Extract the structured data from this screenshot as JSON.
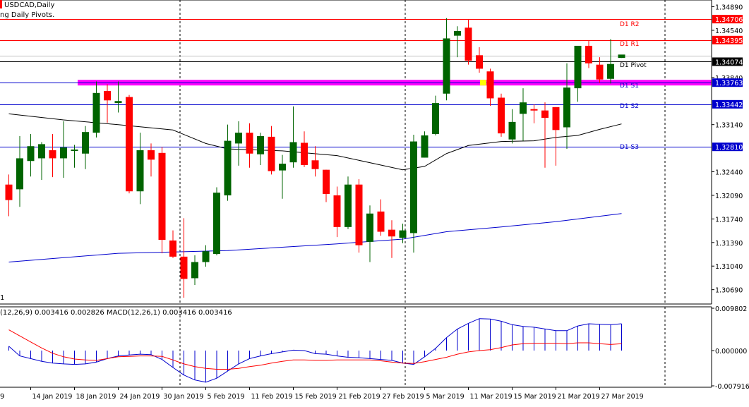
{
  "chart_info": {
    "symbol_label": "USDCAD,Daily",
    "indicator_label": "ng Daily Pivots.",
    "macd_label": "(12,26,9) 0.003416 0.002826 MACD(12,26,1) 0.003416 0.003416",
    "macd_panel_marker": "1"
  },
  "colors": {
    "bull": "#006400",
    "bear": "#ff0000",
    "pivot_red": "#ff0000",
    "pivot_black": "#000000",
    "support_blue": "#0000cd",
    "highlight_magenta": "#ff00ff",
    "ma_fast": "#000000",
    "ma_slow": "#0000cd",
    "macd_line": "#0000cd",
    "macd_signal": "#ff0000",
    "grid_dash": "#000000"
  },
  "price_axis_ticks": [
    "1.34890",
    "1.34540",
    "1.33840",
    "1.33140",
    "1.32440",
    "1.32090",
    "1.31740",
    "1.31390",
    "1.31040",
    "1.30690"
  ],
  "macd_axis_ticks": [
    "0.009802",
    "0.000000",
    "-0.007916"
  ],
  "date_labels": [
    "14 Jan 2019",
    "18 Jan 2019",
    "24 Jan 2019",
    "30 Jan 2019",
    "5 Feb 2019",
    "11 Feb 2019",
    "15 Feb 2019",
    "21 Feb 2019",
    "27 Feb 2019",
    "5 Mar 2019",
    "11 Mar 2019",
    "15 Mar 2019",
    "21 Mar 2019",
    "27 Mar 2019"
  ],
  "date_label_partial": "9",
  "price_tags": [
    {
      "value": 1.34706,
      "label": "1.34706",
      "bg": "#ff0000"
    },
    {
      "value": 1.34395,
      "label": "1.34395",
      "bg": "#ff0000"
    },
    {
      "value": 1.34074,
      "label": "1.34074",
      "bg": "#000000"
    },
    {
      "value": 1.33763,
      "label": "1.33763",
      "bg": "#0000cd"
    },
    {
      "value": 1.33442,
      "label": "1.33442",
      "bg": "#0000cd"
    },
    {
      "value": 1.3281,
      "label": "1.32810",
      "bg": "#0000cd"
    }
  ],
  "pivot_labels": {
    "r2": "D1 R2",
    "r1": "D1 R1",
    "pivot": "D1 Pivot",
    "s1": "D1 S1",
    "s2": "D1 S2",
    "s3": "D1 S3"
  },
  "chart_data": {
    "type": "candlestick",
    "symbol": "USDCAD",
    "timeframe": "Daily",
    "price_range": [
      1.3045,
      1.35
    ],
    "pivots": {
      "R2": 1.34706,
      "R1": 1.34395,
      "Pivot": 1.34074,
      "S1": 1.33763,
      "S2": 1.33442,
      "S3": 1.3281
    },
    "candles": [
      {
        "o": 1.3225,
        "h": 1.324,
        "l": 1.3178,
        "c": 1.3202
      },
      {
        "o": 1.3218,
        "h": 1.3297,
        "l": 1.3192,
        "c": 1.3264
      },
      {
        "o": 1.326,
        "h": 1.33,
        "l": 1.3237,
        "c": 1.3282
      },
      {
        "o": 1.3264,
        "h": 1.3288,
        "l": 1.3232,
        "c": 1.3285
      },
      {
        "o": 1.3276,
        "h": 1.33,
        "l": 1.3236,
        "c": 1.3264
      },
      {
        "o": 1.3264,
        "h": 1.3319,
        "l": 1.3235,
        "c": 1.328
      },
      {
        "o": 1.3275,
        "h": 1.3284,
        "l": 1.325,
        "c": 1.3277
      },
      {
        "o": 1.3271,
        "h": 1.3312,
        "l": 1.3248,
        "c": 1.3303
      },
      {
        "o": 1.3302,
        "h": 1.3378,
        "l": 1.3295,
        "c": 1.3361
      },
      {
        "o": 1.3364,
        "h": 1.3374,
        "l": 1.3317,
        "c": 1.335
      },
      {
        "o": 1.3346,
        "h": 1.3378,
        "l": 1.3332,
        "c": 1.3349
      },
      {
        "o": 1.3355,
        "h": 1.3358,
        "l": 1.3212,
        "c": 1.3215
      },
      {
        "o": 1.3215,
        "h": 1.3302,
        "l": 1.3196,
        "c": 1.3276
      },
      {
        "o": 1.3276,
        "h": 1.3286,
        "l": 1.3237,
        "c": 1.3262
      },
      {
        "o": 1.3272,
        "h": 1.3281,
        "l": 1.3123,
        "c": 1.3143
      },
      {
        "o": 1.3142,
        "h": 1.3157,
        "l": 1.3116,
        "c": 1.3118
      },
      {
        "o": 1.3118,
        "h": 1.3175,
        "l": 1.3057,
        "c": 1.3085
      },
      {
        "o": 1.3086,
        "h": 1.312,
        "l": 1.3076,
        "c": 1.311
      },
      {
        "o": 1.311,
        "h": 1.3135,
        "l": 1.3103,
        "c": 1.3126
      },
      {
        "o": 1.3122,
        "h": 1.3221,
        "l": 1.312,
        "c": 1.3213
      },
      {
        "o": 1.3209,
        "h": 1.3314,
        "l": 1.3201,
        "c": 1.329
      },
      {
        "o": 1.3286,
        "h": 1.3319,
        "l": 1.3253,
        "c": 1.3302
      },
      {
        "o": 1.3302,
        "h": 1.3316,
        "l": 1.325,
        "c": 1.3271
      },
      {
        "o": 1.327,
        "h": 1.3302,
        "l": 1.3254,
        "c": 1.3297
      },
      {
        "o": 1.3296,
        "h": 1.3312,
        "l": 1.324,
        "c": 1.3245
      },
      {
        "o": 1.3246,
        "h": 1.3269,
        "l": 1.3204,
        "c": 1.3256
      },
      {
        "o": 1.3258,
        "h": 1.3341,
        "l": 1.325,
        "c": 1.3288
      },
      {
        "o": 1.3287,
        "h": 1.3304,
        "l": 1.3251,
        "c": 1.3254
      },
      {
        "o": 1.3261,
        "h": 1.3282,
        "l": 1.3237,
        "c": 1.3248
      },
      {
        "o": 1.3247,
        "h": 1.3247,
        "l": 1.3199,
        "c": 1.3211
      },
      {
        "o": 1.3209,
        "h": 1.3222,
        "l": 1.3147,
        "c": 1.3162
      },
      {
        "o": 1.3162,
        "h": 1.3237,
        "l": 1.3159,
        "c": 1.3225
      },
      {
        "o": 1.3225,
        "h": 1.3233,
        "l": 1.3124,
        "c": 1.3135
      },
      {
        "o": 1.314,
        "h": 1.3194,
        "l": 1.311,
        "c": 1.3182
      },
      {
        "o": 1.3185,
        "h": 1.3203,
        "l": 1.3149,
        "c": 1.3155
      },
      {
        "o": 1.3158,
        "h": 1.3172,
        "l": 1.3116,
        "c": 1.3148
      },
      {
        "o": 1.3146,
        "h": 1.3167,
        "l": 1.3138,
        "c": 1.3157
      },
      {
        "o": 1.3153,
        "h": 1.3299,
        "l": 1.3124,
        "c": 1.3289
      },
      {
        "o": 1.3265,
        "h": 1.3304,
        "l": 1.3265,
        "c": 1.3298
      },
      {
        "o": 1.33,
        "h": 1.3357,
        "l": 1.3298,
        "c": 1.3346
      },
      {
        "o": 1.336,
        "h": 1.3472,
        "l": 1.335,
        "c": 1.3442
      },
      {
        "o": 1.3446,
        "h": 1.346,
        "l": 1.3414,
        "c": 1.3453
      },
      {
        "o": 1.3458,
        "h": 1.347,
        "l": 1.3403,
        "c": 1.3409
      },
      {
        "o": 1.3417,
        "h": 1.3429,
        "l": 1.3391,
        "c": 1.3397
      },
      {
        "o": 1.3393,
        "h": 1.3397,
        "l": 1.3342,
        "c": 1.3353
      },
      {
        "o": 1.3354,
        "h": 1.336,
        "l": 1.3296,
        "c": 1.3301
      },
      {
        "o": 1.3292,
        "h": 1.3337,
        "l": 1.3286,
        "c": 1.3318
      },
      {
        "o": 1.333,
        "h": 1.3368,
        "l": 1.329,
        "c": 1.3347
      },
      {
        "o": 1.3337,
        "h": 1.3344,
        "l": 1.3316,
        "c": 1.3335
      },
      {
        "o": 1.3335,
        "h": 1.3347,
        "l": 1.325,
        "c": 1.3324
      },
      {
        "o": 1.334,
        "h": 1.334,
        "l": 1.3253,
        "c": 1.3306
      },
      {
        "o": 1.331,
        "h": 1.3405,
        "l": 1.3278,
        "c": 1.3369
      },
      {
        "o": 1.3368,
        "h": 1.343,
        "l": 1.3348,
        "c": 1.3431
      },
      {
        "o": 1.3431,
        "h": 1.3439,
        "l": 1.3398,
        "c": 1.3405
      },
      {
        "o": 1.3403,
        "h": 1.3414,
        "l": 1.3376,
        "c": 1.3381
      },
      {
        "o": 1.3382,
        "h": 1.3441,
        "l": 1.3375,
        "c": 1.3404
      },
      {
        "o": 1.3413,
        "h": 1.3417,
        "l": 1.3413,
        "c": 1.3418
      }
    ],
    "moving_averages": [
      {
        "color": "#000000",
        "points": [
          [
            0,
            1.333
          ],
          [
            5,
            1.3321
          ],
          [
            10,
            1.3314
          ],
          [
            15,
            1.3306
          ],
          [
            18,
            1.3286
          ],
          [
            20,
            1.3278
          ],
          [
            25,
            1.3275
          ],
          [
            30,
            1.3268
          ],
          [
            34,
            1.3254
          ],
          [
            36,
            1.3247
          ],
          [
            38,
            1.3252
          ],
          [
            40,
            1.3271
          ],
          [
            42,
            1.3283
          ],
          [
            45,
            1.3289
          ],
          [
            48,
            1.329
          ],
          [
            50,
            1.3295
          ],
          [
            52,
            1.3298
          ],
          [
            54,
            1.3307
          ],
          [
            56,
            1.3315
          ]
        ]
      },
      {
        "color": "#0000cd",
        "points": [
          [
            0,
            1.311
          ],
          [
            10,
            1.3123
          ],
          [
            20,
            1.3127
          ],
          [
            30,
            1.3137
          ],
          [
            36,
            1.3144
          ],
          [
            40,
            1.3155
          ],
          [
            45,
            1.3162
          ],
          [
            50,
            1.317
          ],
          [
            56,
            1.3182
          ]
        ]
      }
    ],
    "macd": {
      "range": [
        -0.007916,
        0.009802
      ],
      "histogram": [
        0.001,
        -0.0012,
        -0.0018,
        -0.0024,
        -0.0028,
        -0.003,
        -0.0031,
        -0.003,
        -0.0026,
        -0.0018,
        -0.0012,
        -0.001,
        -0.0008,
        -0.0009,
        -0.002,
        -0.0038,
        -0.0055,
        -0.0066,
        -0.0071,
        -0.0062,
        -0.0046,
        -0.003,
        -0.0018,
        -0.0012,
        -0.0007,
        -0.0003,
        0.0001,
        0.0,
        -0.0007,
        -0.0008,
        -0.0012,
        -0.0015,
        -0.0016,
        -0.0018,
        -0.002,
        -0.0022,
        -0.0028,
        -0.0031,
        -0.0014,
        0.0005,
        0.003,
        0.005,
        0.0063,
        0.0074,
        0.0073,
        0.0068,
        0.006,
        0.0056,
        0.0054,
        0.005,
        0.0046,
        0.0046,
        0.0057,
        0.0062,
        0.0061,
        0.006,
        0.0062
      ],
      "signal": [
        0.0048,
        0.0034,
        0.002,
        0.0006,
        -0.0006,
        -0.0014,
        -0.0019,
        -0.0021,
        -0.0022,
        -0.0018,
        -0.0014,
        -0.0013,
        -0.0012,
        -0.0012,
        -0.0013,
        -0.0021,
        -0.003,
        -0.0036,
        -0.004,
        -0.0042,
        -0.0042,
        -0.004,
        -0.0036,
        -0.0033,
        -0.0028,
        -0.0024,
        -0.0021,
        -0.0021,
        -0.0022,
        -0.0022,
        -0.0021,
        -0.0021,
        -0.0021,
        -0.0021,
        -0.0023,
        -0.0026,
        -0.0028,
        -0.0029,
        -0.0025,
        -0.002,
        -0.0015,
        -0.0008,
        -0.0003,
        0.0,
        0.0002,
        0.0007,
        0.0013,
        0.0016,
        0.0017,
        0.0017,
        0.0017,
        0.0016,
        0.0018,
        0.0018,
        0.0016,
        0.0014,
        0.0016
      ]
    }
  }
}
